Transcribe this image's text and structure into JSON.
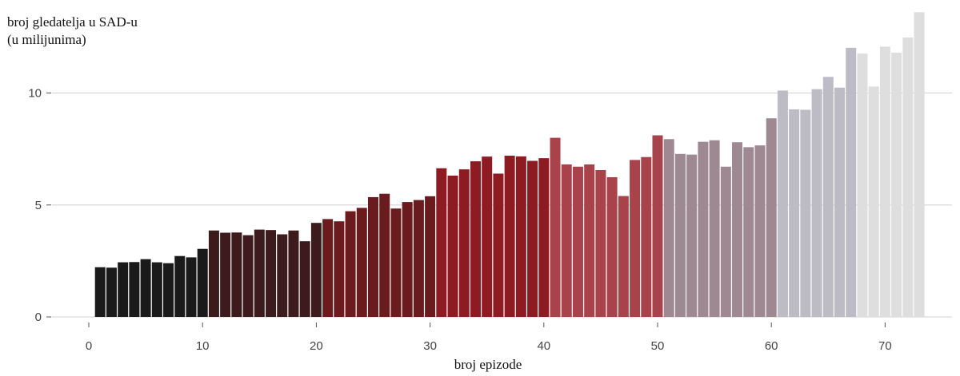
{
  "chart_data": {
    "type": "bar",
    "xlabel": "broj epizode",
    "ylabel_lines": [
      "broj gledatelja u SAD-u",
      "(u milijunima)"
    ],
    "xlim": [
      -2,
      75
    ],
    "ylim": [
      0,
      13.8
    ],
    "x_ticks": [
      0,
      10,
      20,
      30,
      40,
      50,
      60,
      70
    ],
    "y_ticks": [
      0,
      5,
      10
    ],
    "grid": "horizontal",
    "series_colors": [
      "#1a1a1a",
      "#3d1a1c",
      "#6b1a1e",
      "#8e1b22",
      "#a8434c",
      "#9e8892",
      "#bdbcc6",
      "#dedede"
    ],
    "x": [
      1,
      2,
      3,
      4,
      5,
      6,
      7,
      8,
      9,
      10,
      11,
      12,
      13,
      14,
      15,
      16,
      17,
      18,
      19,
      20,
      21,
      22,
      23,
      24,
      25,
      26,
      27,
      28,
      29,
      30,
      31,
      32,
      33,
      34,
      35,
      36,
      37,
      38,
      39,
      40,
      41,
      42,
      43,
      44,
      45,
      46,
      47,
      48,
      49,
      50,
      51,
      52,
      53,
      54,
      55,
      56,
      57,
      58,
      59,
      60,
      61,
      62,
      63,
      64,
      65,
      66,
      67,
      68,
      69,
      70,
      71,
      72,
      73
    ],
    "values": [
      2.22,
      2.2,
      2.44,
      2.45,
      2.58,
      2.44,
      2.4,
      2.72,
      2.66,
      3.04,
      3.86,
      3.76,
      3.77,
      3.65,
      3.9,
      3.88,
      3.69,
      3.86,
      3.38,
      4.2,
      4.37,
      4.27,
      4.72,
      4.87,
      5.35,
      5.5,
      4.84,
      5.13,
      5.22,
      5.39,
      6.64,
      6.31,
      6.59,
      6.95,
      7.16,
      6.4,
      7.2,
      7.17,
      6.97,
      7.09,
      8.0,
      6.81,
      6.71,
      6.81,
      6.56,
      6.24,
      5.4,
      7.01,
      7.14,
      8.11,
      7.94,
      7.28,
      7.25,
      7.82,
      7.89,
      6.71,
      7.8,
      7.58,
      7.66,
      8.87,
      10.11,
      9.27,
      9.25,
      10.17,
      10.72,
      10.24,
      12.02,
      11.76,
      10.29,
      12.07,
      11.8,
      12.48,
      13.61
    ],
    "groups": [
      0,
      0,
      0,
      0,
      0,
      0,
      0,
      0,
      0,
      0,
      1,
      1,
      1,
      1,
      1,
      1,
      1,
      1,
      1,
      1,
      2,
      2,
      2,
      2,
      2,
      2,
      2,
      2,
      2,
      2,
      3,
      3,
      3,
      3,
      3,
      3,
      3,
      3,
      3,
      3,
      4,
      4,
      4,
      4,
      4,
      4,
      4,
      4,
      4,
      4,
      5,
      5,
      5,
      5,
      5,
      5,
      5,
      5,
      5,
      5,
      6,
      6,
      6,
      6,
      6,
      6,
      6,
      7,
      7,
      7,
      7,
      7,
      7
    ]
  }
}
